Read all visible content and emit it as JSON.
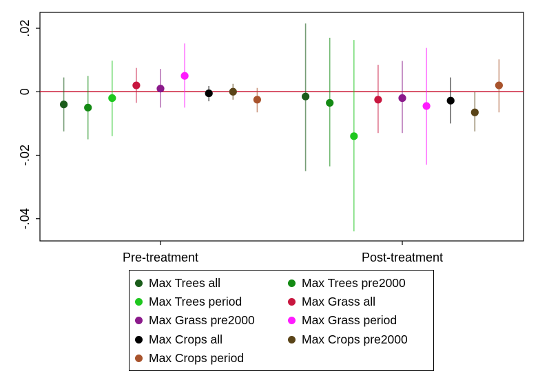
{
  "chart_data": {
    "type": "scatter",
    "subtype": "coefficient-plot-with-confidence-intervals",
    "title": "",
    "xlabel": "",
    "ylabel": "",
    "categories": [
      "Pre-treatment",
      "Post-treatment"
    ],
    "ylim": [
      -0.047,
      0.025
    ],
    "yticks": [
      0.02,
      0,
      -0.02,
      -0.04
    ],
    "ytick_labels": [
      ".02",
      "0",
      "-.02",
      "-.04"
    ],
    "reference_line": {
      "y": 0,
      "color": "#c8102e"
    },
    "grid": false,
    "legend_position": "bottom",
    "legend_columns": 2,
    "series": [
      {
        "name": "Max Trees all",
        "color": "#1a5c1a",
        "values": [
          -0.004,
          -0.0015
        ],
        "ci_low": [
          -0.0125,
          -0.025
        ],
        "ci_high": [
          0.0045,
          0.0215
        ]
      },
      {
        "name": "Max Trees pre2000",
        "color": "#138a13",
        "values": [
          -0.005,
          -0.0035
        ],
        "ci_low": [
          -0.015,
          -0.0235
        ],
        "ci_high": [
          0.005,
          0.017
        ]
      },
      {
        "name": "Max Trees period",
        "color": "#1ec71e",
        "values": [
          -0.002,
          -0.014
        ],
        "ci_low": [
          -0.014,
          -0.044
        ],
        "ci_high": [
          0.0098,
          0.0163
        ]
      },
      {
        "name": "Max Grass all",
        "color": "#c8163f",
        "values": [
          0.002,
          -0.0025
        ],
        "ci_low": [
          -0.0035,
          -0.013
        ],
        "ci_high": [
          0.0075,
          0.0085
        ]
      },
      {
        "name": "Max Grass pre2000",
        "color": "#8b1a8b",
        "values": [
          0.001,
          -0.002
        ],
        "ci_low": [
          -0.005,
          -0.013
        ],
        "ci_high": [
          0.0072,
          0.0097
        ]
      },
      {
        "name": "Max Grass period",
        "color": "#ff1aff",
        "values": [
          0.005,
          -0.0045
        ],
        "ci_low": [
          -0.005,
          -0.023
        ],
        "ci_high": [
          0.0152,
          0.0138
        ]
      },
      {
        "name": "Max Crops all",
        "color": "#000000",
        "values": [
          -0.0005,
          -0.0028
        ],
        "ci_low": [
          -0.003,
          -0.01
        ],
        "ci_high": [
          0.0018,
          0.0045
        ]
      },
      {
        "name": "Max Crops pre2000",
        "color": "#5a4418",
        "values": [
          0.0,
          -0.0065
        ],
        "ci_low": [
          -0.0025,
          -0.0125
        ],
        "ci_high": [
          0.0025,
          0.0
        ]
      },
      {
        "name": "Max Crops period",
        "color": "#a8532c",
        "values": [
          -0.0025,
          0.002
        ],
        "ci_low": [
          -0.0065,
          -0.0065
        ],
        "ci_high": [
          0.0012,
          0.0102
        ]
      }
    ]
  }
}
